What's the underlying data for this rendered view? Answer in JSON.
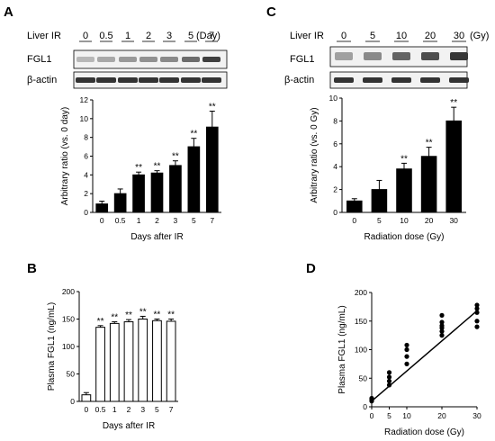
{
  "panel_labels": [
    "A",
    "B",
    "C",
    "D"
  ],
  "blot_rows": [
    "FGL1",
    "β-actin"
  ],
  "blot_A": {
    "header": "Liver IR",
    "lanes": [
      "0",
      "0.5",
      "1",
      "2",
      "3",
      "5",
      "7"
    ],
    "unit": "(Day)"
  },
  "blot_C": {
    "header": "Liver IR",
    "lanes": [
      "0",
      "5",
      "10",
      "20",
      "30"
    ],
    "unit": "(Gy)"
  },
  "chart_data": [
    {
      "panel": "A",
      "type": "bar",
      "categories": [
        "0",
        "0.5",
        "1",
        "2",
        "3",
        "5",
        "7"
      ],
      "values": [
        0.9,
        2.0,
        4.0,
        4.2,
        5.0,
        7.0,
        9.1
      ],
      "errors": [
        0.3,
        0.5,
        0.3,
        0.25,
        0.5,
        0.9,
        1.7
      ],
      "significance": [
        "",
        "",
        "**",
        "**",
        "**",
        "**",
        "**"
      ],
      "xlabel": "Days after IR",
      "ylabel": "Arbitrary ratio (vs. 0 day)",
      "ylim": [
        0,
        12
      ],
      "yticks": [
        0,
        2,
        4,
        6,
        8,
        10,
        12
      ],
      "fill": "#000000"
    },
    {
      "panel": "B",
      "type": "bar",
      "categories": [
        "0",
        "0.5",
        "1",
        "2",
        "3",
        "5",
        "7"
      ],
      "values": [
        12,
        135,
        142,
        145,
        150,
        147,
        146
      ],
      "errors": [
        4,
        3,
        3,
        4,
        5,
        3,
        4
      ],
      "significance": [
        "",
        "**",
        "**",
        "**",
        "**",
        "**",
        "**"
      ],
      "xlabel": "Days after IR",
      "ylabel": "Plasma FGL1 (ng/mL)",
      "ylim": [
        0,
        200
      ],
      "yticks": [
        0,
        50,
        100,
        150,
        200
      ],
      "fill": "#ffffff"
    },
    {
      "panel": "C",
      "type": "bar",
      "categories": [
        "0",
        "5",
        "10",
        "20",
        "30"
      ],
      "values": [
        1.0,
        2.0,
        3.8,
        4.9,
        8.0
      ],
      "errors": [
        0.2,
        0.8,
        0.5,
        0.8,
        1.2
      ],
      "significance": [
        "",
        "",
        "**",
        "**",
        "**"
      ],
      "xlabel": "Radiation dose (Gy)",
      "ylabel": "Arbitrary ratio (vs. 0 Gy)",
      "ylim": [
        0,
        10
      ],
      "yticks": [
        0,
        2,
        4,
        6,
        8,
        10
      ],
      "fill": "#000000"
    },
    {
      "panel": "D",
      "type": "scatter",
      "x": [
        0,
        0,
        0,
        5,
        5,
        5,
        5,
        10,
        10,
        10,
        10,
        20,
        20,
        20,
        20,
        20,
        20,
        30,
        30,
        30,
        30,
        30
      ],
      "y": [
        10,
        13,
        15,
        38,
        45,
        52,
        60,
        75,
        88,
        100,
        108,
        125,
        132,
        138,
        142,
        148,
        160,
        140,
        150,
        165,
        172,
        178
      ],
      "fit": {
        "x": [
          0,
          30
        ],
        "y": [
          10,
          168
        ]
      },
      "xlabel": "Radiation dose (Gy)",
      "ylabel": "Plasma FGL1 (ng/mL)",
      "xlim": [
        0,
        30
      ],
      "ylim": [
        0,
        200
      ],
      "xticks": [
        0,
        5,
        10,
        20,
        30
      ],
      "yticks": [
        0,
        50,
        100,
        150,
        200
      ]
    }
  ]
}
